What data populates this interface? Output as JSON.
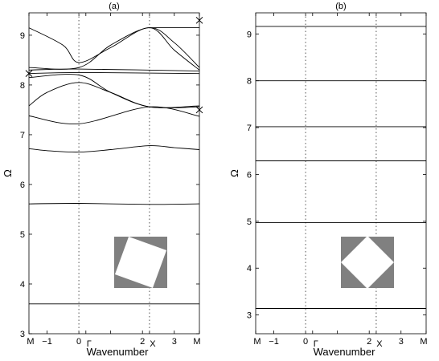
{
  "chart_data": [
    {
      "type": "line",
      "panel": "(a)",
      "title": "(a)",
      "xlabel": "Wavenumber",
      "ylabel": "Ω",
      "xlim": [
        -1.57,
        3.79
      ],
      "ylim": [
        3,
        9.45
      ],
      "xticks": [
        {
          "value": -1.57,
          "label": "M"
        },
        {
          "value": -1,
          "label": "−1"
        },
        {
          "value": 0,
          "label": "0"
        },
        {
          "value": 0.22,
          "label": "Γ"
        },
        {
          "value": 1,
          "label": ""
        },
        {
          "value": 2,
          "label": "2"
        },
        {
          "value": 2.22,
          "label": "X"
        },
        {
          "value": 3,
          "label": "3"
        },
        {
          "value": 3.79,
          "label": "M"
        }
      ],
      "yticks": [
        3,
        4,
        5,
        6,
        7,
        8,
        9
      ],
      "vlines": [
        0,
        2.22
      ],
      "markers": [
        {
          "x": -1.57,
          "y": 8.23
        },
        {
          "x": 3.79,
          "y": 9.3
        },
        {
          "x": 3.79,
          "y": 7.5
        }
      ],
      "inset": {
        "shape": "rotated-square",
        "rotation_deg": 20
      },
      "series": [
        {
          "x": [
            -1.57,
            3.79
          ],
          "y": [
            3.6,
            3.6
          ]
        },
        {
          "x": [
            -1.57,
            0,
            2.22,
            3.79
          ],
          "y": [
            5.61,
            5.62,
            5.6,
            5.61
          ]
        },
        {
          "x": [
            -1.57,
            -1,
            0,
            1,
            2.22,
            3,
            3.79
          ],
          "y": [
            6.72,
            6.68,
            6.65,
            6.7,
            6.78,
            6.74,
            6.7
          ]
        },
        {
          "x": [
            -1.57,
            0,
            2.22,
            3.79
          ],
          "y": [
            7.38,
            7.22,
            7.56,
            7.37
          ]
        },
        {
          "x": [
            -1.57,
            -1,
            0,
            1,
            2.22,
            3.79
          ],
          "y": [
            7.58,
            7.85,
            8.05,
            7.85,
            7.56,
            7.58
          ]
        },
        {
          "x": [
            -1.57,
            0,
            1,
            2.22,
            3.79
          ],
          "y": [
            8.15,
            8.2,
            7.85,
            7.56,
            7.56
          ]
        },
        {
          "x": [
            -1.57,
            0,
            3.79
          ],
          "y": [
            8.23,
            8.25,
            8.23
          ]
        },
        {
          "x": [
            -1.57,
            0,
            3.79
          ],
          "y": [
            8.3,
            8.32,
            8.28
          ]
        },
        {
          "x": [
            -1.57,
            -0.5,
            0,
            1,
            2.22,
            3,
            3.79
          ],
          "y": [
            9.15,
            8.8,
            8.45,
            8.75,
            9.15,
            8.7,
            8.3
          ]
        },
        {
          "x": [
            -1.57,
            0,
            1,
            2.22,
            3,
            3.79
          ],
          "y": [
            8.35,
            8.35,
            8.8,
            9.15,
            8.85,
            8.35
          ]
        },
        {
          "x": [
            2.22,
            3.79
          ],
          "y": [
            9.15,
            9.15
          ]
        }
      ]
    },
    {
      "type": "line",
      "panel": "(b)",
      "title": "(b)",
      "xlabel": "Wavenumber",
      "ylabel": "Ω",
      "xlim": [
        -1.57,
        3.79
      ],
      "ylim": [
        2.6,
        9.45
      ],
      "xticks": [
        {
          "value": -1.57,
          "label": "M"
        },
        {
          "value": -1,
          "label": "−1"
        },
        {
          "value": 0,
          "label": "0"
        },
        {
          "value": 0.22,
          "label": "Γ"
        },
        {
          "value": 1,
          "label": ""
        },
        {
          "value": 2,
          "label": "2"
        },
        {
          "value": 2.22,
          "label": "X"
        },
        {
          "value": 3,
          "label": "3"
        },
        {
          "value": 3.79,
          "label": "M"
        }
      ],
      "yticks": [
        3,
        4,
        5,
        6,
        7,
        8,
        9
      ],
      "vlines": [
        0,
        2.22
      ],
      "markers": [],
      "inset": {
        "shape": "rotated-square",
        "rotation_deg": 45
      },
      "series": [
        {
          "x": [
            -1.57,
            3.79
          ],
          "y": [
            3.14,
            3.14
          ]
        },
        {
          "x": [
            -1.57,
            3.79
          ],
          "y": [
            4.97,
            4.97
          ]
        },
        {
          "x": [
            -1.57,
            3.79
          ],
          "y": [
            6.29,
            6.29
          ]
        },
        {
          "x": [
            -1.57,
            3.79
          ],
          "y": [
            7.02,
            7.02
          ]
        },
        {
          "x": [
            -1.57,
            3.79
          ],
          "y": [
            8.0,
            8.0
          ]
        },
        {
          "x": [
            -1.57,
            3.79
          ],
          "y": [
            9.16,
            9.16
          ]
        }
      ]
    }
  ]
}
